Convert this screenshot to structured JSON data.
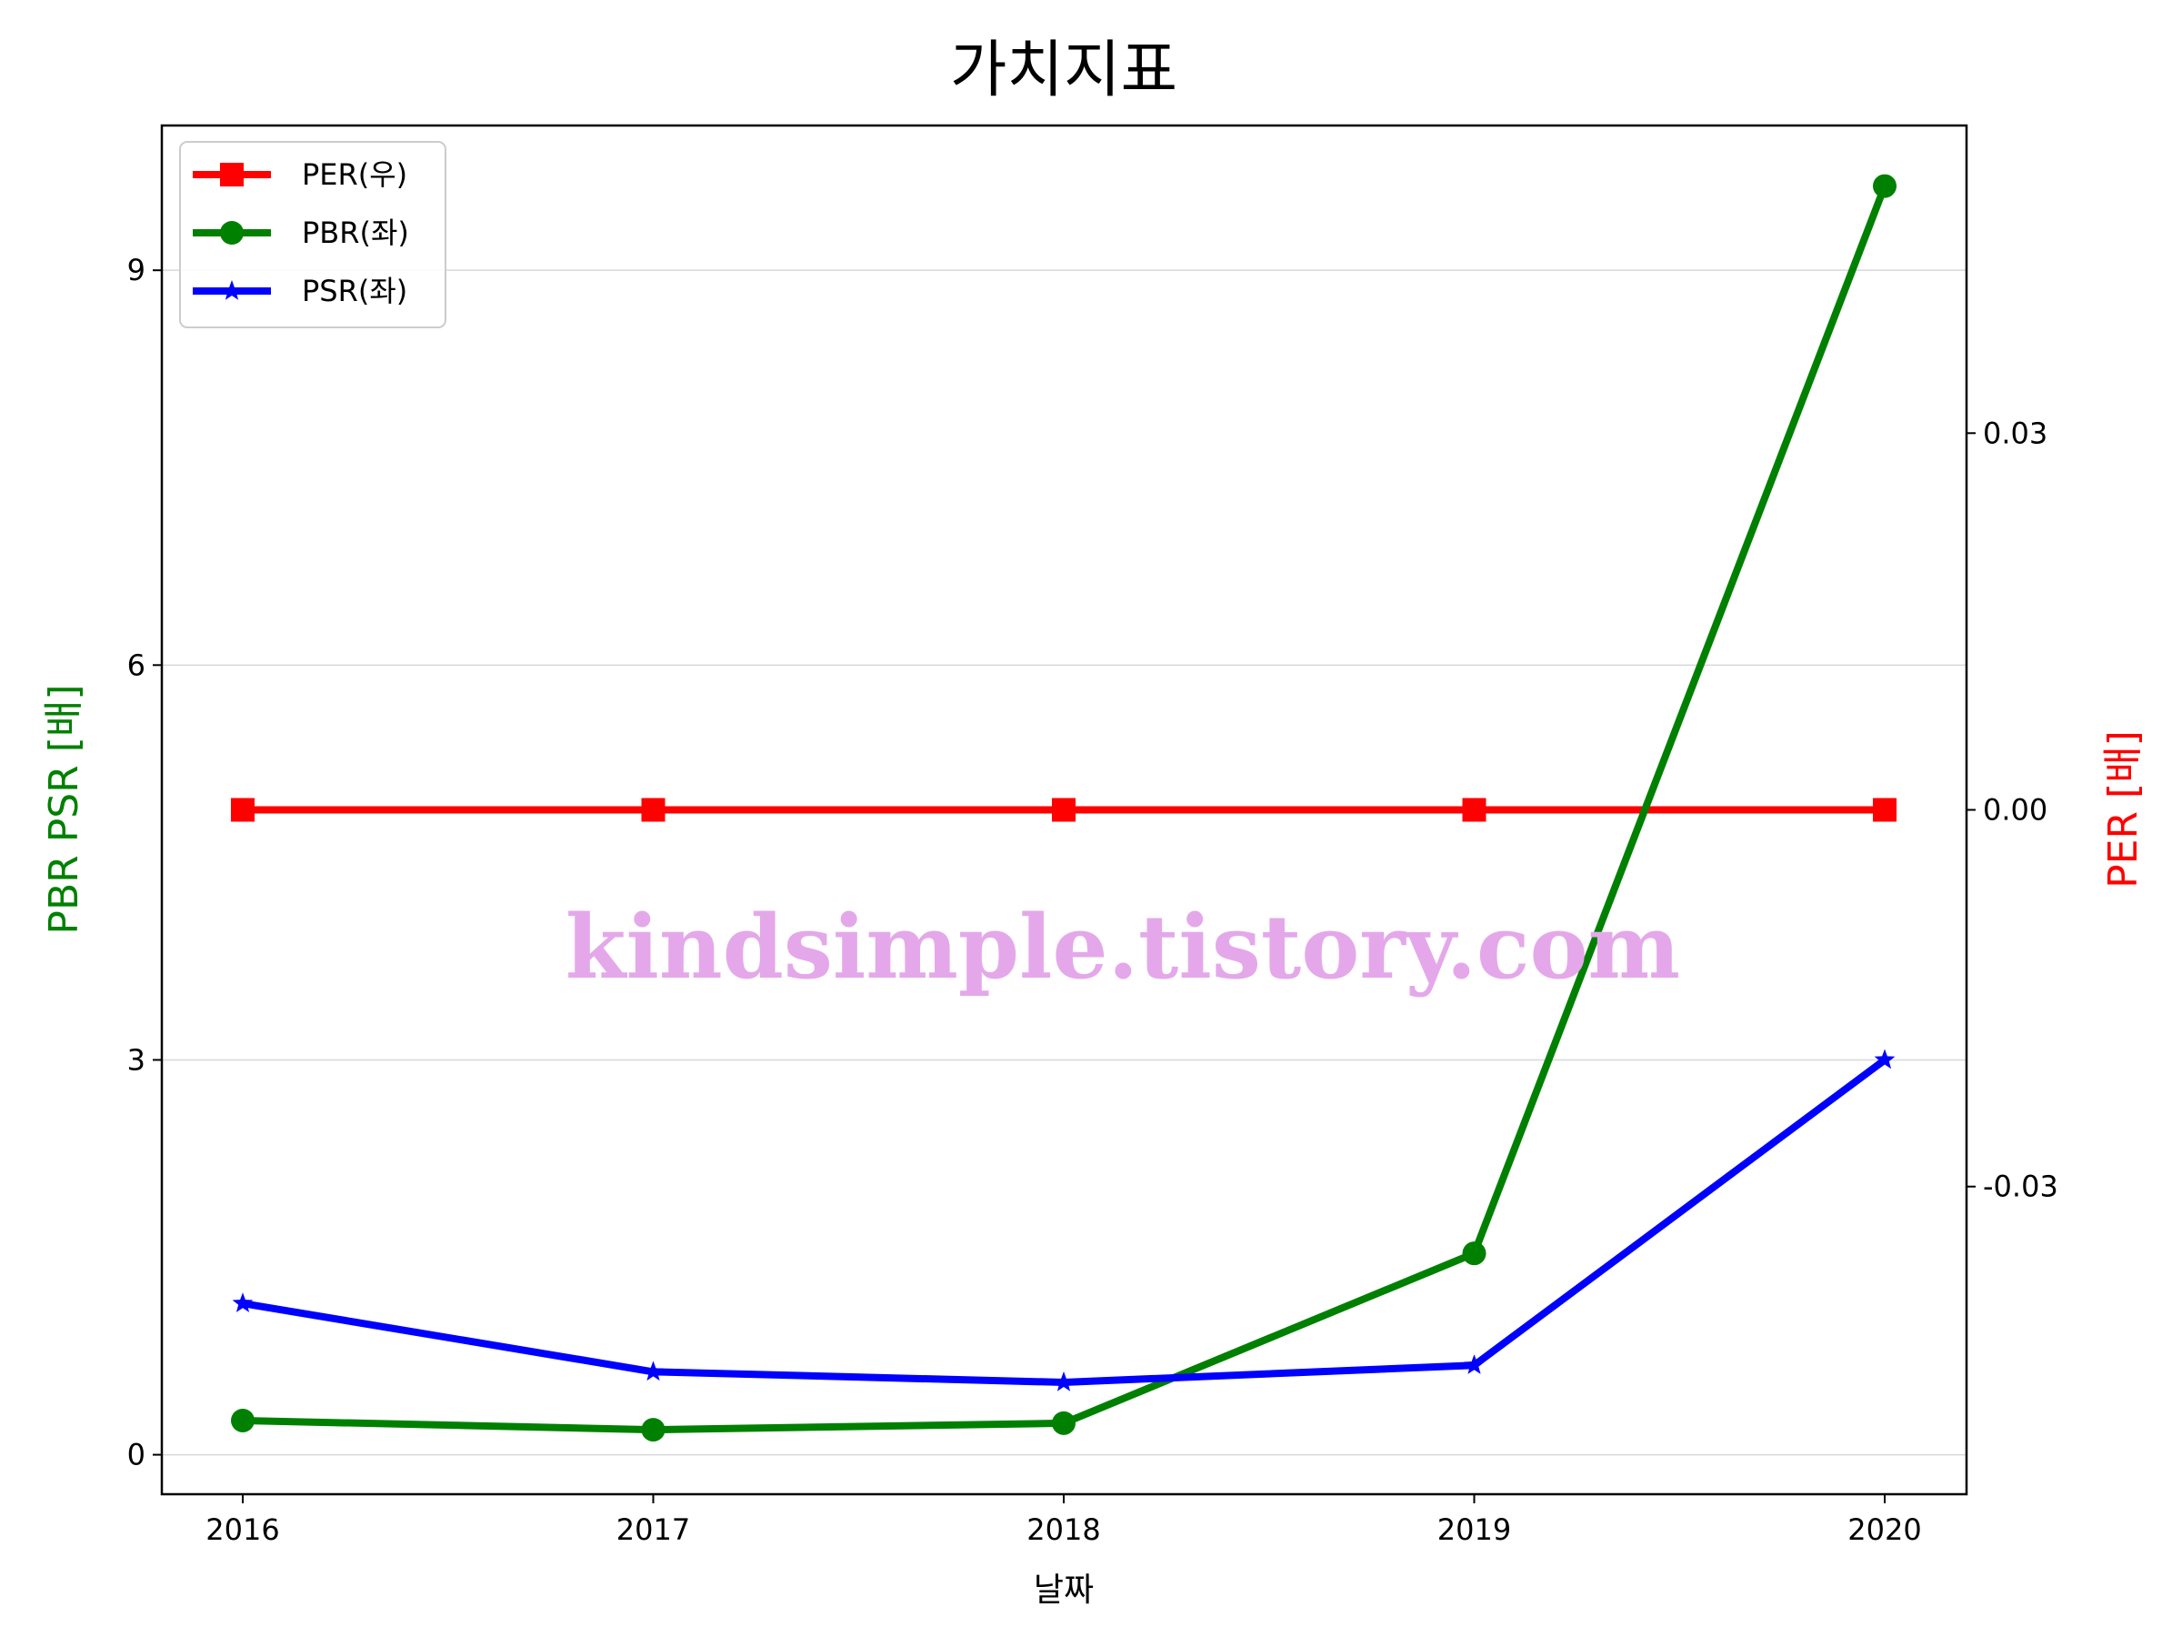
{
  "chart_data": {
    "type": "line",
    "title": "가치지표",
    "xlabel": "날짜",
    "ylabel_left": "PBR PSR [배]",
    "ylabel_right": "PER [배]",
    "categories": [
      "2016",
      "2017",
      "2018",
      "2019",
      "2020"
    ],
    "left_axis": {
      "ylim": [
        -0.3,
        10.1
      ],
      "ticks": [
        0,
        3,
        6,
        9
      ],
      "tick_labels": [
        "0",
        "3",
        "6",
        "9"
      ]
    },
    "right_axis": {
      "ylim": [
        -0.0545,
        0.0545
      ],
      "ticks": [
        -0.03,
        0.0,
        0.03
      ],
      "tick_labels": [
        "-0.03",
        "0.00",
        "0.03"
      ]
    },
    "grid": true,
    "legend_position": "upper-left",
    "series": [
      {
        "name": "PER(우)",
        "axis": "right",
        "color": "#ff0000",
        "marker": "square",
        "values": [
          0,
          0,
          0,
          0,
          0
        ]
      },
      {
        "name": "PBR(좌)",
        "axis": "left",
        "color": "#008000",
        "marker": "circle",
        "values": [
          0.26,
          0.19,
          0.24,
          1.53,
          9.64
        ]
      },
      {
        "name": "PSR(좌)",
        "axis": "left",
        "color": "#0000ff",
        "marker": "star",
        "values": [
          1.15,
          0.63,
          0.55,
          0.68,
          3.0
        ]
      }
    ],
    "colors": {
      "left_label": "#008000",
      "right_label": "#ff0000",
      "watermark": "#e4a8ea"
    }
  },
  "watermark": "kindsimple.tistory.com"
}
